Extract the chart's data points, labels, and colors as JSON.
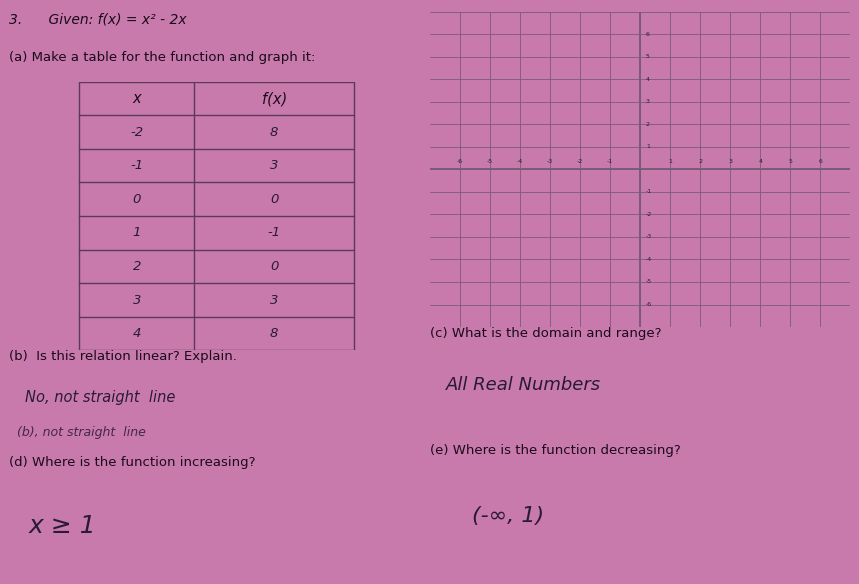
{
  "bg_color": "#c97aad",
  "title_number": "3.",
  "title_given": "Given: f(x) = x² - 2x",
  "part_a_text": "(a) Make a table for the function and graph it:",
  "table_x": [
    "-2",
    "-1",
    "0",
    "1",
    "2",
    "3",
    "4"
  ],
  "table_fx": [
    "8",
    "3",
    "0",
    "-1",
    "0",
    "3",
    "8"
  ],
  "part_b_label": "(b)  Is this relation linear? Explain.",
  "part_b_answer_line1": "No, not straight line",
  "part_b_answer_line2": "(b), not straight line",
  "part_c_label": "(c) What is the domain and range?",
  "part_c_answer": "All Real Numbers",
  "part_d_label": "(d) Where is the function increasing?",
  "part_d_answer": "x ≥ 1",
  "part_e_label": "(e) Where is the function decreasing?",
  "part_e_answer": "(-∞, 1)",
  "grid_color": "#7a5a7a",
  "text_color": "#1a0a1a",
  "handwritten_color": "#2a1a3a",
  "table_border_color": "#5a3a5a",
  "grid_xlim": [
    -7,
    7
  ],
  "grid_ylim": [
    -7,
    7
  ],
  "grid_xticks": [
    -7,
    -6,
    -5,
    -4,
    -3,
    -2,
    -1,
    0,
    1,
    2,
    3,
    4,
    5,
    6,
    7
  ],
  "grid_yticks": [
    -7,
    -6,
    -5,
    -4,
    -3,
    -2,
    -1,
    0,
    1,
    2,
    3,
    4,
    5,
    6,
    7
  ],
  "curve_color": "#1a1a1a",
  "fig_width": 8.59,
  "fig_height": 5.84,
  "fig_dpi": 100
}
